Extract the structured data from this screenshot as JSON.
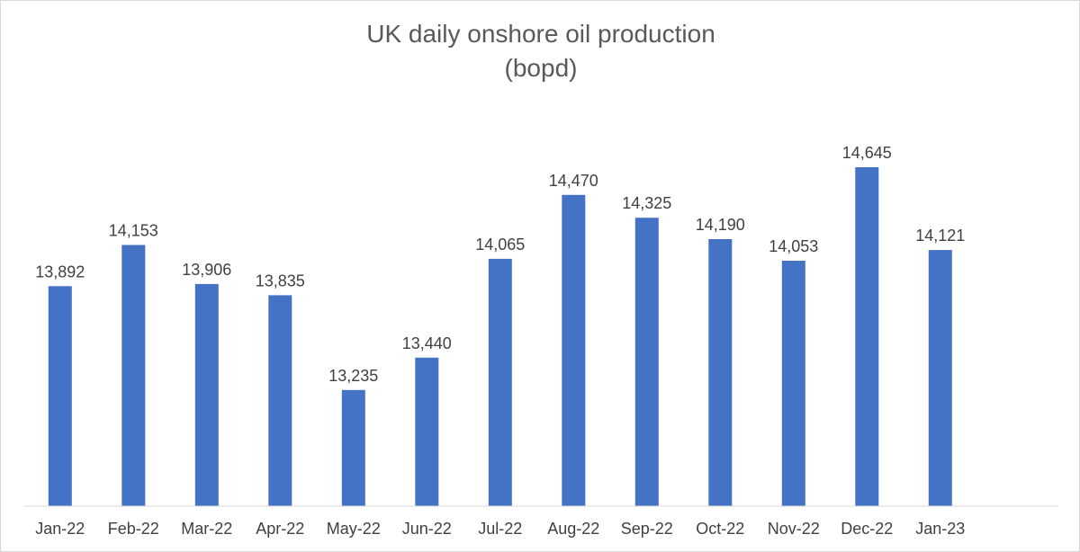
{
  "chart_data": {
    "type": "bar",
    "title": "UK daily onshore oil production",
    "subtitle": "(bopd)",
    "categories": [
      "Jan-22",
      "Feb-22",
      "Mar-22",
      "Apr-22",
      "May-22",
      "Jun-22",
      "Jul-22",
      "Aug-22",
      "Sep-22",
      "Oct-22",
      "Nov-22",
      "Dec-22",
      "Jan-23"
    ],
    "values": [
      13892,
      14153,
      13906,
      13835,
      13235,
      13440,
      14065,
      14470,
      14325,
      14190,
      14053,
      14645,
      14121
    ],
    "data_labels": [
      "13,892",
      "14,153",
      "13,906",
      "13,835",
      "13,235",
      "13,440",
      "14,065",
      "14,470",
      "14,325",
      "14,190",
      "14,053",
      "14,645",
      "14,121"
    ],
    "xlabel": "",
    "ylabel": "",
    "ylim": [
      12500,
      14900
    ],
    "grid": false,
    "legend": "none",
    "bar_color": "#4472c4"
  }
}
